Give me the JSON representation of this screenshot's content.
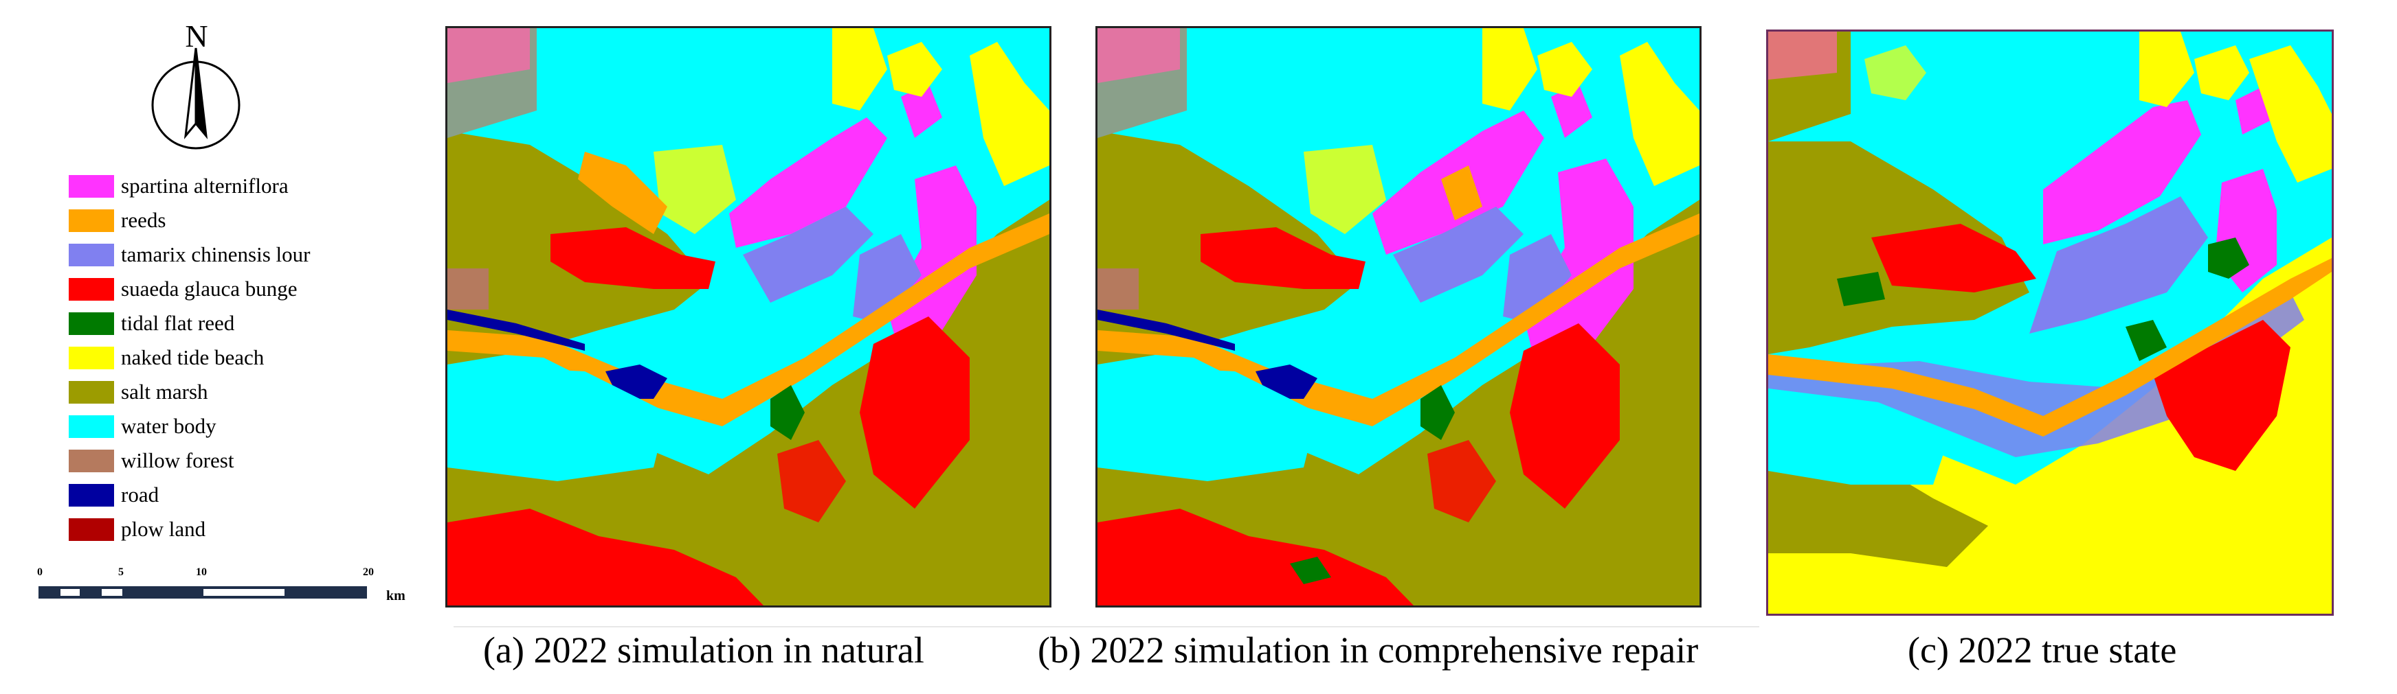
{
  "north_label": "N",
  "legend": [
    {
      "label": "spartina alterniflora",
      "color": "#ff33ff"
    },
    {
      "label": "reeds",
      "color": "#ffa500"
    },
    {
      "label": "tamarix chinensis lour",
      "color": "#8080f0"
    },
    {
      "label": "suaeda glauca bunge",
      "color": "#ff0000"
    },
    {
      "label": "tidal flat reed",
      "color": "#007a00"
    },
    {
      "label": "naked tide beach",
      "color": "#ffff00"
    },
    {
      "label": "salt marsh",
      "color": "#9c9c00"
    },
    {
      "label": "water body",
      "color": "#00ffff"
    },
    {
      "label": "willow forest",
      "color": "#b57a5e"
    },
    {
      "label": "road",
      "color": "#0000a0"
    },
    {
      "label": "plow land",
      "color": "#b00000"
    }
  ],
  "scale": {
    "ticks": [
      "0",
      "5",
      "10",
      "20"
    ],
    "unit": "km"
  },
  "panels": [
    {
      "id": "a",
      "letter": "(a)",
      "year": "2022",
      "text": "simulation in natural"
    },
    {
      "id": "b",
      "letter": "(b)",
      "year": "2022",
      "text": "simulation in comprehensive repair"
    },
    {
      "id": "c",
      "letter": "(c)",
      "year": "2022",
      "text": "true state"
    }
  ]
}
